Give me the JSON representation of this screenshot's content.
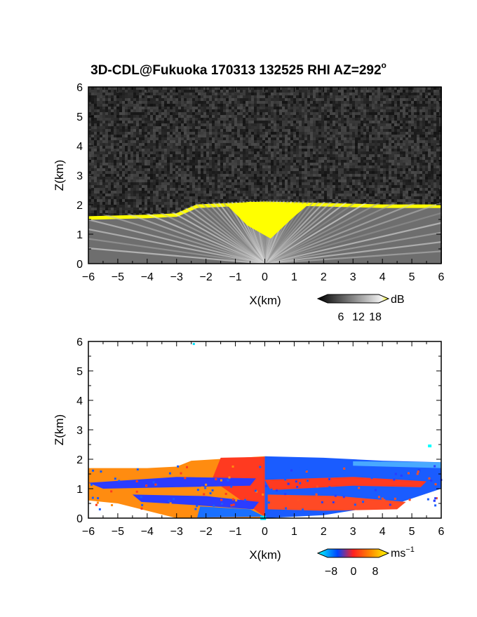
{
  "title": "3D-CDL@Fukuoka 170313 132525 RHI AZ=292",
  "title_sup": "o",
  "chart_data": [
    {
      "type": "heatmap",
      "name": "reflectivity",
      "xlabel": "X(km)",
      "ylabel": "Z(km)",
      "xlim": [
        -6,
        6
      ],
      "ylim": [
        0,
        6
      ],
      "xticks": [
        -6,
        -5,
        -4,
        -3,
        -2,
        -1,
        0,
        1,
        2,
        3,
        4,
        5,
        6
      ],
      "yticks": [
        0,
        1,
        2,
        3,
        4,
        5,
        6
      ],
      "colorbar": {
        "ticks": [
          "6",
          "12",
          "18"
        ],
        "unit": "dB",
        "range": [
          0,
          20
        ]
      },
      "colors": {
        "noise": "#2a2a2a",
        "beam_low": "#6e6e6e",
        "beam_high": "#ececec",
        "saturated": "#ffff00"
      },
      "layer": {
        "top_x": [
          -6,
          -4,
          -3,
          -2.3,
          0,
          2,
          4,
          6
        ],
        "top_z": [
          1.55,
          1.6,
          1.65,
          1.95,
          2.05,
          2.0,
          1.95,
          1.95
        ],
        "saturated_x_range": [
          -1.3,
          1.5
        ]
      }
    },
    {
      "type": "heatmap",
      "name": "doppler_velocity",
      "xlabel": "X(km)",
      "ylabel": "Z(km)",
      "xlim": [
        -6,
        6
      ],
      "ylim": [
        0,
        6
      ],
      "xticks": [
        -6,
        -5,
        -4,
        -3,
        -2,
        -1,
        0,
        1,
        2,
        3,
        4,
        5,
        6
      ],
      "yticks": [
        0,
        1,
        2,
        3,
        4,
        5,
        6
      ],
      "colorbar": {
        "ticks": [
          "−8",
          "0",
          "8"
        ],
        "unit": "ms",
        "unit_sup": "−1",
        "range": [
          -10,
          10
        ]
      },
      "colors": {
        "neg_strong": "#00ffff",
        "neg": "#0044ff",
        "zero": "#ff2020",
        "pos": "#ff8c00",
        "pos_strong": "#ffff00"
      },
      "layer_top_z": [
        1.7,
        1.7,
        1.75,
        1.95,
        2.1,
        2.05,
        1.95,
        1.9
      ],
      "layer_top_x": [
        -6,
        -4,
        -3,
        -2.5,
        0,
        2,
        4,
        6
      ]
    }
  ]
}
